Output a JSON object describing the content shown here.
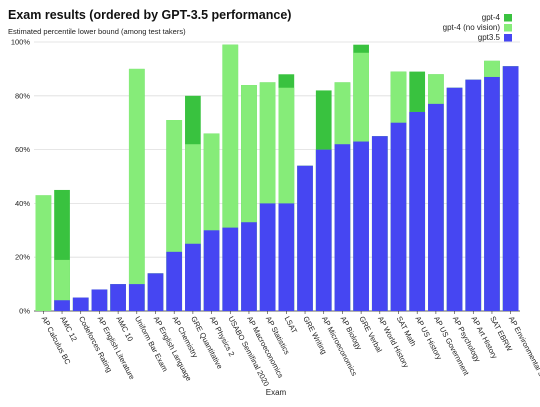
{
  "chart_data": {
    "type": "bar",
    "stacked": "overlay",
    "title": "Exam results (ordered by GPT-3.5 performance)",
    "subtitle": "Estimated percentile lower bound (among test takers)",
    "xlabel": "Exam",
    "ylabel": "",
    "ylim": [
      0,
      100
    ],
    "yticks": [
      "0%",
      "20%",
      "40%",
      "60%",
      "80%",
      "100%"
    ],
    "grid": true,
    "legend_position": "top-right",
    "categories": [
      "AP Calculus BC",
      "AMC 12",
      "Codeforces Rating",
      "AP English Literature",
      "AMC 10",
      "Uniform Bar Exam",
      "AP English Language",
      "AP Chemistry",
      "GRE Quantitative",
      "AP Physics 2",
      "USABO Semifinal 2020",
      "AP Macroeconomics",
      "AP Statistics",
      "LSAT",
      "GRE Writing",
      "AP Microeconomics",
      "AP Biology",
      "GRE Verbal",
      "AP World History",
      "SAT Math",
      "AP US History",
      "AP US Government",
      "AP Psychology",
      "AP Art History",
      "SAT EBRW",
      "AP Environmental Science"
    ],
    "series": [
      {
        "name": "gpt-4",
        "color": "#39c23f",
        "values": [
          43,
          45,
          5,
          8,
          10,
          90,
          14,
          71,
          80,
          66,
          99,
          84,
          85,
          88,
          54,
          82,
          85,
          99,
          65,
          89,
          89,
          88,
          83,
          86,
          93,
          91
        ]
      },
      {
        "name": "gpt-4 (no vision)",
        "color": "#86ec79",
        "values": [
          43,
          19,
          5,
          8,
          10,
          90,
          14,
          71,
          62,
          66,
          99,
          84,
          85,
          83,
          54,
          60,
          85,
          96,
          65,
          89,
          74,
          88,
          83,
          86,
          93,
          91
        ]
      },
      {
        "name": "gpt3.5",
        "color": "#4646f2",
        "values": [
          0,
          4,
          5,
          8,
          10,
          10,
          14,
          22,
          25,
          30,
          31,
          33,
          40,
          40,
          54,
          60,
          62,
          63,
          65,
          70,
          74,
          77,
          83,
          86,
          87,
          91
        ]
      }
    ]
  }
}
